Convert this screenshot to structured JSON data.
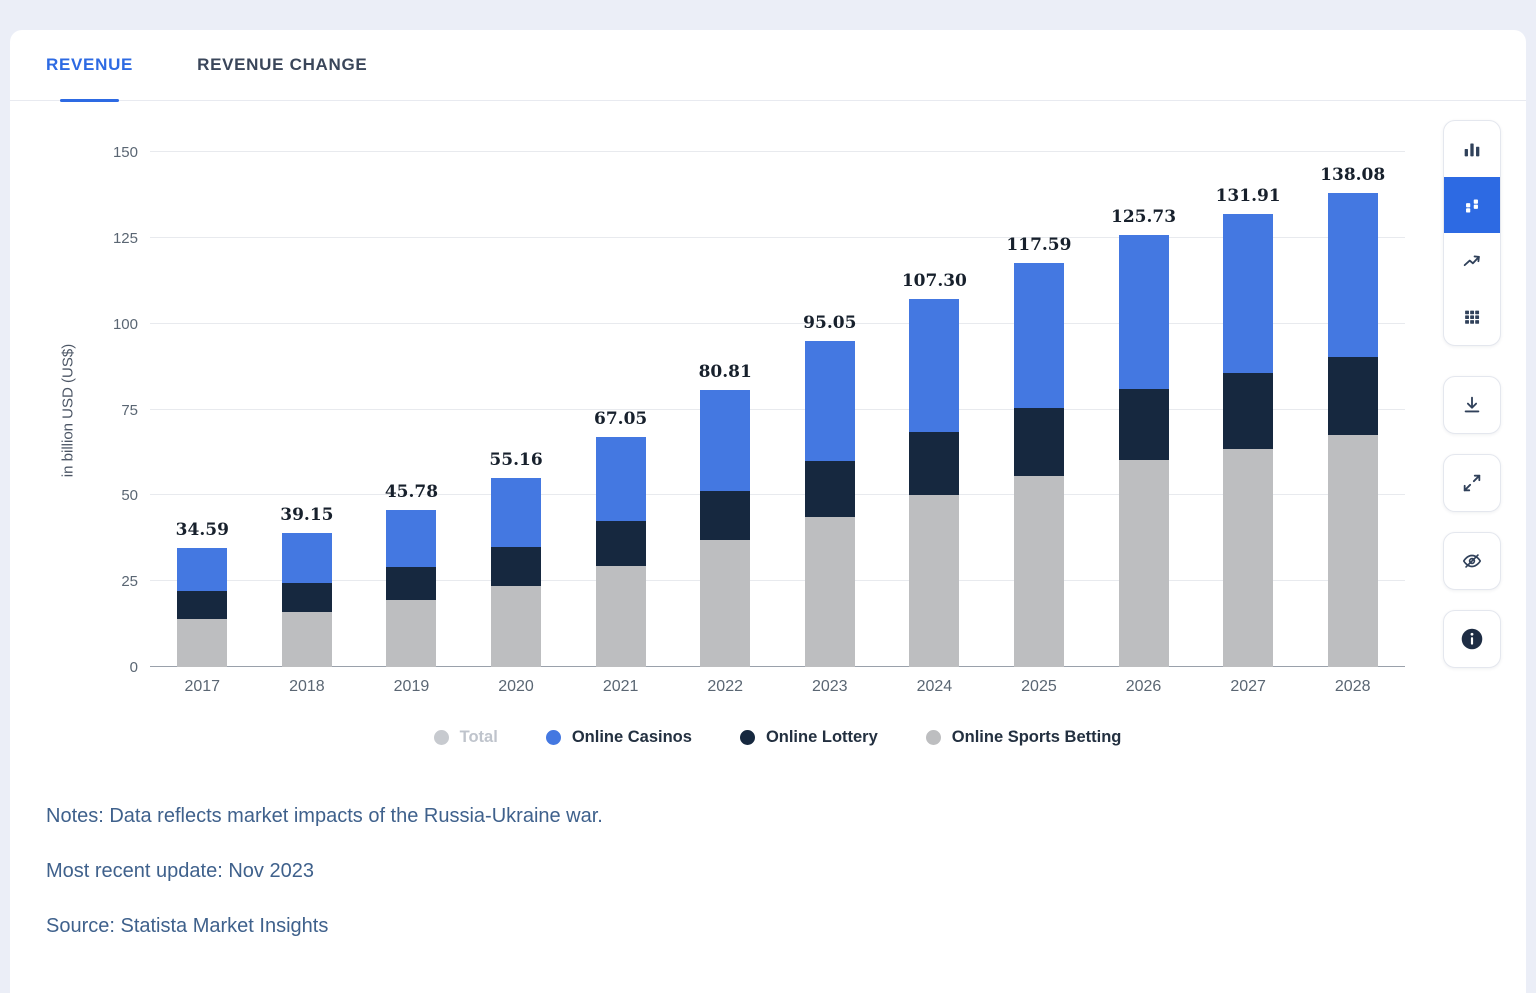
{
  "page": {
    "background": "#ebeef7",
    "card_background": "#ffffff"
  },
  "tabs": [
    {
      "label": "REVENUE",
      "active": true
    },
    {
      "label": "REVENUE CHANGE",
      "active": false
    }
  ],
  "chart_data": {
    "type": "bar",
    "stacked": true,
    "title": "",
    "xlabel": "",
    "ylabel": "in billion USD (US$)",
    "ylim": [
      0,
      150
    ],
    "yticks": [
      0,
      25,
      50,
      75,
      100,
      125,
      150
    ],
    "grid": true,
    "legend_position": "bottom",
    "categories": [
      "2017",
      "2018",
      "2019",
      "2020",
      "2021",
      "2022",
      "2023",
      "2024",
      "2025",
      "2026",
      "2027",
      "2028"
    ],
    "series": [
      {
        "name": "Online Sports Betting",
        "color": "#bdbec0",
        "values": [
          14.0,
          16.0,
          19.4,
          23.6,
          29.5,
          37.0,
          43.6,
          50.0,
          55.5,
          60.3,
          63.5,
          67.5
        ]
      },
      {
        "name": "Online Lottery",
        "color": "#16283f",
        "values": [
          8.0,
          8.6,
          9.6,
          11.3,
          13.0,
          14.2,
          16.4,
          18.5,
          19.9,
          20.8,
          22.2,
          22.7
        ]
      },
      {
        "name": "Online Casinos",
        "color": "#4478e1",
        "values": [
          12.59,
          14.55,
          16.78,
          20.26,
          24.55,
          29.61,
          35.05,
          38.8,
          42.19,
          44.63,
          46.21,
          47.88
        ]
      }
    ],
    "totals": [
      34.59,
      39.15,
      45.78,
      55.16,
      67.05,
      80.81,
      95.05,
      107.3,
      117.59,
      125.73,
      131.91,
      138.08
    ],
    "legend": [
      {
        "label": "Total",
        "color": "#c7cacf",
        "muted": true
      },
      {
        "label": "Online Casinos",
        "color": "#4478e1",
        "muted": false
      },
      {
        "label": "Online Lottery",
        "color": "#16283f",
        "muted": false
      },
      {
        "label": "Online Sports Betting",
        "color": "#bdbec0",
        "muted": false
      }
    ]
  },
  "notes": {
    "line1": "Notes: Data reflects market impacts of the Russia-Ukraine war.",
    "line2": "Most recent update: Nov 2023",
    "line3": "Source: Statista Market Insights"
  },
  "toolbar": {
    "active_color": "#2d6ae3",
    "buttons": [
      {
        "icon": "bar-chart-icon",
        "active": false
      },
      {
        "icon": "stacked-bar-chart-icon",
        "active": true
      },
      {
        "icon": "line-chart-icon",
        "active": false
      },
      {
        "icon": "table-icon",
        "active": false
      },
      {
        "icon": "download-icon",
        "active": false
      },
      {
        "icon": "fullscreen-icon",
        "active": false
      },
      {
        "icon": "hide-values-icon",
        "active": false
      },
      {
        "icon": "info-icon",
        "active": false
      }
    ]
  }
}
